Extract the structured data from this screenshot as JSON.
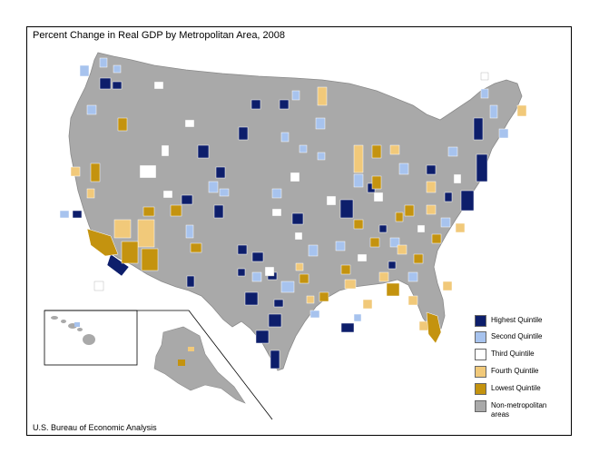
{
  "title": "Percent Change in Real GDP by Metropolitan Area, 2008",
  "source": "U.S. Bureau of Economic Analysis",
  "legend": [
    {
      "label": "Highest Quintile",
      "color": "#0d1e6b"
    },
    {
      "label": "Second Quintile",
      "color": "#a7c3ee"
    },
    {
      "label": "Third Quintile",
      "color": "#ffffff"
    },
    {
      "label": "Fourth Quintile",
      "color": "#f1c97a"
    },
    {
      "label": "Lowest Quintile",
      "color": "#c4930f"
    },
    {
      "label": "Non-metropolitan areas",
      "color": "#a9a9a9"
    }
  ],
  "colors": {
    "land": "#a9a9a9",
    "border": "#ffffff"
  }
}
